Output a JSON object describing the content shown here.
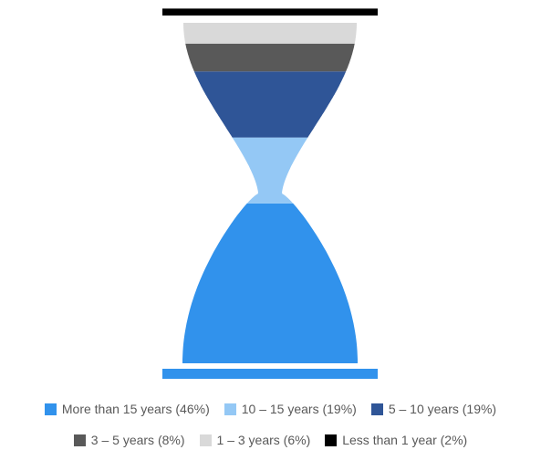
{
  "chart_data": {
    "type": "hourglass",
    "categories": [
      "More than 15 years (46%)",
      "10 – 15 years (19%)",
      "5 – 10 years (19%)",
      "3 – 5 years (8%)",
      "1 – 3 years (6%)",
      "Less than 1 year (2%)"
    ],
    "values": [
      46,
      19,
      19,
      8,
      6,
      2
    ],
    "colors": [
      "#3192ec",
      "#94c8f5",
      "#2f5597",
      "#595959",
      "#d9d9d9",
      "#000000"
    ],
    "legend": "bottom"
  }
}
